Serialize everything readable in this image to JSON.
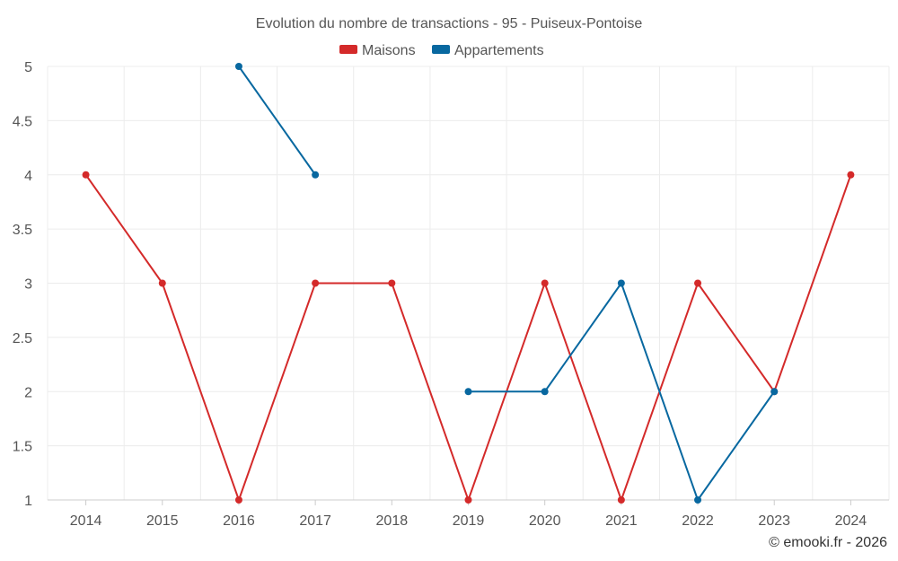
{
  "chart_data": {
    "type": "line",
    "title": "Evolution du nombre de transactions - 95 - Puiseux-Pontoise",
    "categories": [
      "2014",
      "2015",
      "2016",
      "2017",
      "2018",
      "2019",
      "2020",
      "2021",
      "2022",
      "2023",
      "2024"
    ],
    "ylim": [
      1,
      5
    ],
    "yticks": [
      {
        "value": 1,
        "label": "1"
      },
      {
        "value": 1.5,
        "label": "1.5"
      },
      {
        "value": 2,
        "label": "2"
      },
      {
        "value": 2.5,
        "label": "2.5"
      },
      {
        "value": 3,
        "label": "3"
      },
      {
        "value": 3.5,
        "label": "3.5"
      },
      {
        "value": 4,
        "label": "4"
      },
      {
        "value": 4.5,
        "label": "4.5"
      },
      {
        "value": 5,
        "label": "5"
      }
    ],
    "grid": true,
    "legend_position": "top-center",
    "series": [
      {
        "name": "Maisons",
        "color": "#d42a2a",
        "values": [
          4,
          3,
          1,
          3,
          3,
          1,
          3,
          1,
          3,
          2,
          4
        ]
      },
      {
        "name": "Appartements",
        "color": "#0868a0",
        "values": [
          null,
          null,
          5,
          4,
          null,
          2,
          2,
          3,
          1,
          2,
          null
        ]
      }
    ]
  },
  "footer": {
    "credit": "© emooki.fr - 2026"
  }
}
